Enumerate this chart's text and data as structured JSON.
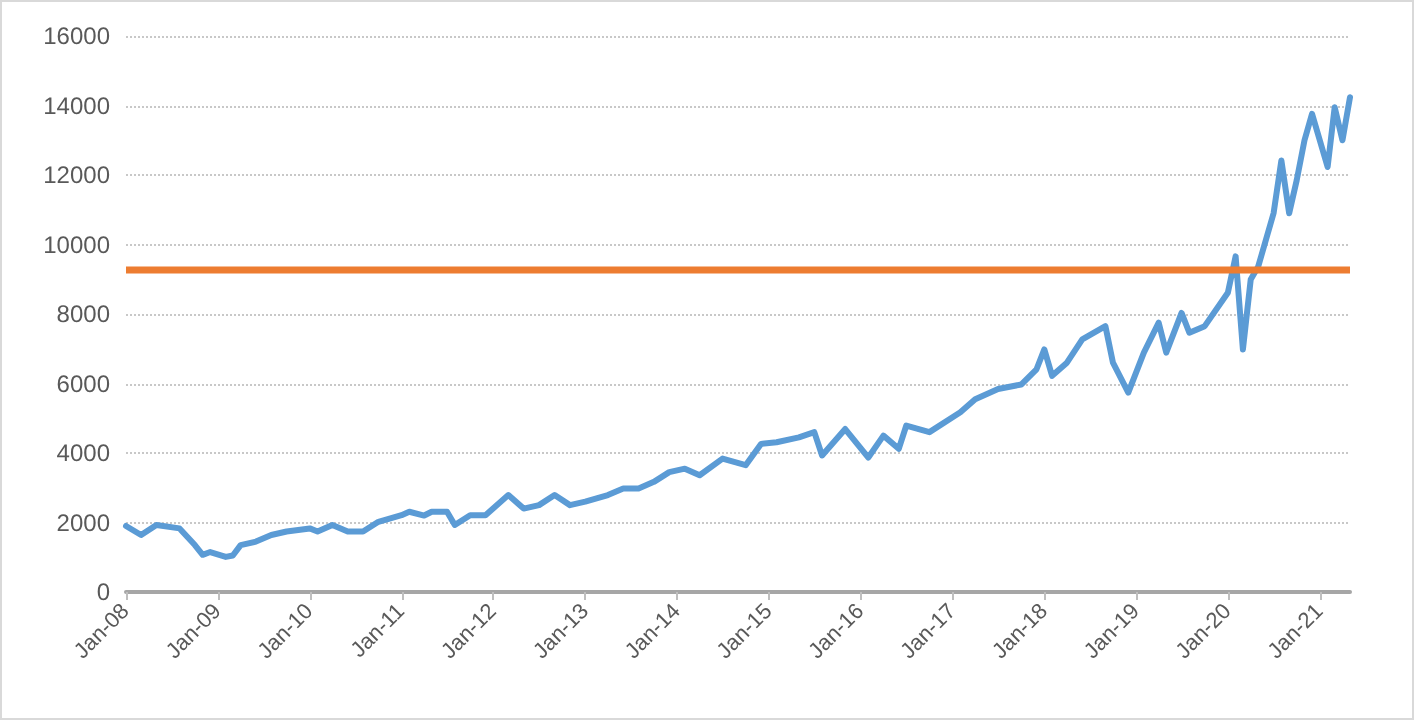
{
  "chart_data": {
    "type": "line",
    "x": [
      "2008-01",
      "2008-03",
      "2008-05",
      "2008-08",
      "2008-10",
      "2008-11",
      "2008-12",
      "2009-02",
      "2009-03",
      "2009-04",
      "2009-06",
      "2009-08",
      "2009-10",
      "2010-01",
      "2010-02",
      "2010-04",
      "2010-06",
      "2010-08",
      "2010-10",
      "2011-01",
      "2011-02",
      "2011-04",
      "2011-05",
      "2011-07",
      "2011-08",
      "2011-10",
      "2011-12",
      "2012-03",
      "2012-05",
      "2012-07",
      "2012-09",
      "2012-11",
      "2013-01",
      "2013-04",
      "2013-06",
      "2013-08",
      "2013-10",
      "2013-12",
      "2014-02",
      "2014-04",
      "2014-07",
      "2014-10",
      "2014-12",
      "2015-02",
      "2015-05",
      "2015-07",
      "2015-08",
      "2015-11",
      "2016-02",
      "2016-04",
      "2016-06",
      "2016-07",
      "2016-10",
      "2017-02",
      "2017-04",
      "2017-07",
      "2017-10",
      "2017-12",
      "2018-01",
      "2018-02",
      "2018-04",
      "2018-06",
      "2018-09",
      "2018-10",
      "2018-12",
      "2019-02",
      "2019-04",
      "2019-05",
      "2019-07",
      "2019-08",
      "2019-10",
      "2020-01",
      "2020-02",
      "2020-03",
      "2020-04",
      "2020-05",
      "2020-07",
      "2020-08",
      "2020-09",
      "2020-10",
      "2020-11",
      "2020-12",
      "2021-02",
      "2021-03",
      "2021-04",
      "2021-05"
    ],
    "series": [
      {
        "color": "#5b9bd5",
        "values": [
          1900,
          1640,
          1930,
          1830,
          1350,
          1070,
          1150,
          1010,
          1050,
          1350,
          1450,
          1640,
          1740,
          1830,
          1740,
          1930,
          1740,
          1740,
          2020,
          2210,
          2310,
          2200,
          2310,
          2310,
          1930,
          2210,
          2210,
          2790,
          2400,
          2500,
          2790,
          2500,
          2600,
          2790,
          2980,
          2980,
          3170,
          3450,
          3550,
          3360,
          3840,
          3650,
          4260,
          4310,
          4450,
          4600,
          3930,
          4690,
          3870,
          4500,
          4120,
          4790,
          4600,
          5170,
          5550,
          5840,
          5970,
          6410,
          6980,
          6220,
          6600,
          7270,
          7650,
          6600,
          5740,
          6890,
          7750,
          6890,
          8030,
          7460,
          7650,
          8610,
          9660,
          6980,
          8990,
          9370,
          10900,
          12420,
          10900,
          11850,
          13000,
          13760,
          12230,
          13950,
          13000,
          14240
        ]
      }
    ],
    "xlim": [
      "2008-01",
      "2021-05"
    ],
    "xticks": [
      {
        "value": "2008-01",
        "label": "Jan-08"
      },
      {
        "value": "2009-01",
        "label": "Jan-09"
      },
      {
        "value": "2010-01",
        "label": "Jan-10"
      },
      {
        "value": "2011-01",
        "label": "Jan-11"
      },
      {
        "value": "2012-01",
        "label": "Jan-12"
      },
      {
        "value": "2013-01",
        "label": "Jan-13"
      },
      {
        "value": "2014-01",
        "label": "Jan-14"
      },
      {
        "value": "2015-01",
        "label": "Jan-15"
      },
      {
        "value": "2016-01",
        "label": "Jan-16"
      },
      {
        "value": "2017-01",
        "label": "Jan-17"
      },
      {
        "value": "2018-01",
        "label": "Jan-18"
      },
      {
        "value": "2019-01",
        "label": "Jan-19"
      },
      {
        "value": "2020-01",
        "label": "Jan-20"
      },
      {
        "value": "2021-01",
        "label": "Jan-21"
      }
    ],
    "ylim": [
      0,
      16000
    ],
    "yticks": [
      0,
      2000,
      4000,
      6000,
      8000,
      10000,
      12000,
      14000,
      16000
    ],
    "ref_lines": [
      {
        "axis": "y",
        "value": 9270,
        "color": "#ed7d31"
      }
    ],
    "grid": "y",
    "marker": "none"
  }
}
